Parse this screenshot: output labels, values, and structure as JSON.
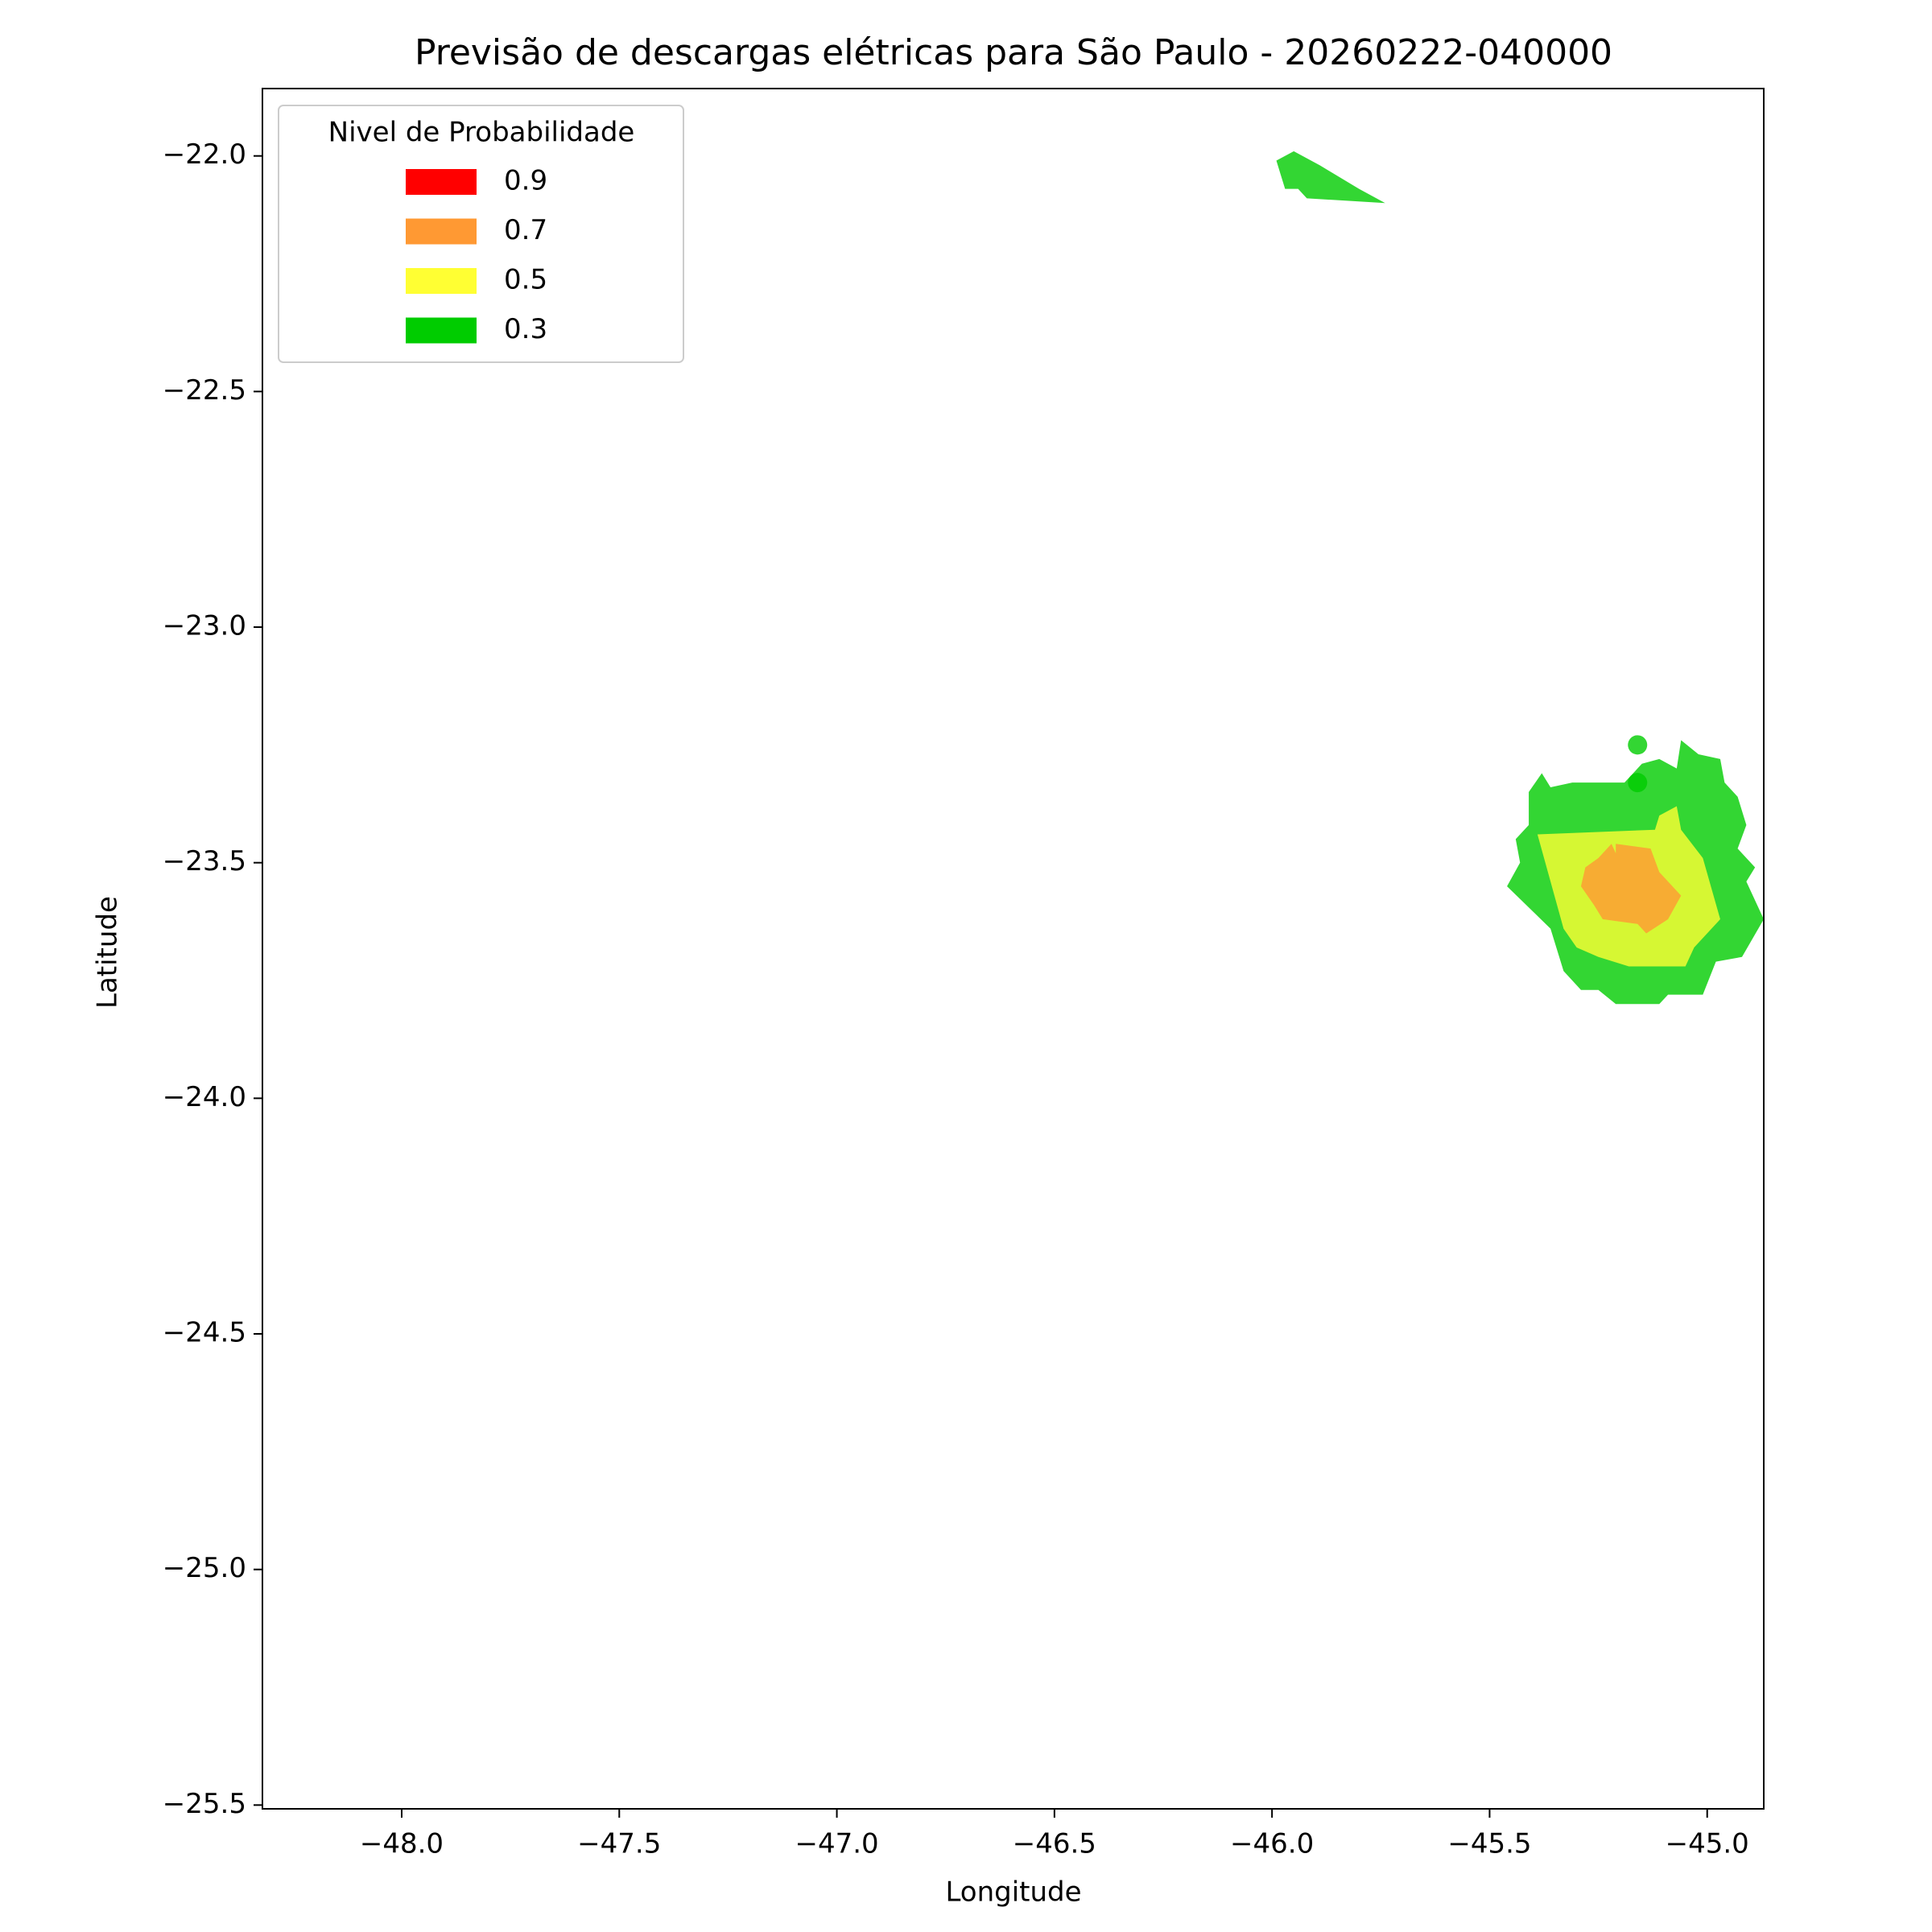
{
  "chart_data": {
    "type": "contour_map",
    "title": "Previsão de descargas elétricas para São Paulo - 20260222-040000",
    "x_label": "Longitude",
    "y_label": "Latitude",
    "xlim": [
      -48.32,
      -44.87
    ],
    "ylim": [
      -25.508,
      -21.857
    ],
    "xticks": [
      {
        "value": -48.0,
        "label": "−48.0"
      },
      {
        "value": -47.5,
        "label": "−47.5"
      },
      {
        "value": -47.0,
        "label": "−47.0"
      },
      {
        "value": -46.5,
        "label": "−46.5"
      },
      {
        "value": -46.0,
        "label": "−46.0"
      },
      {
        "value": -45.5,
        "label": "−45.5"
      },
      {
        "value": -45.0,
        "label": "−45.0"
      }
    ],
    "yticks": [
      {
        "value": -22.0,
        "label": "−22.0"
      },
      {
        "value": -22.5,
        "label": "−22.5"
      },
      {
        "value": -23.0,
        "label": "−23.0"
      },
      {
        "value": -23.5,
        "label": "−23.5"
      },
      {
        "value": -24.0,
        "label": "−24.0"
      },
      {
        "value": -24.5,
        "label": "−24.5"
      },
      {
        "value": -25.0,
        "label": "−25.0"
      },
      {
        "value": -25.5,
        "label": "−25.5"
      }
    ],
    "legend_title": "Nivel de Probabilidade",
    "legend_position": "upper left",
    "alpha": 0.8,
    "series": [
      {
        "name": "0.9",
        "color": "#ff0000",
        "polygons": []
      },
      {
        "name": "0.7",
        "color": "#ff9933",
        "polygons": [
          {
            "x": [
              -45.25,
              -45.22,
              -45.21,
              -45.21,
              -45.13,
              -45.11,
              -45.06,
              -45.09,
              -45.14,
              -45.16,
              -45.24,
              -45.26,
              -45.29,
              -45.28
            ],
            "y": [
              -23.49,
              -23.46,
              -23.48,
              -23.46,
              -23.47,
              -23.52,
              -23.57,
              -23.62,
              -23.65,
              -23.63,
              -23.62,
              -23.59,
              -23.55,
              -23.51
            ]
          }
        ]
      },
      {
        "name": "0.5",
        "color": "#ffff33",
        "polygons": [
          {
            "x": [
              -45.39,
              -45.12,
              -45.11,
              -45.07,
              -45.06,
              -45.01,
              -44.97,
              -45.03,
              -45.05,
              -45.18,
              -45.25,
              -45.3,
              -45.33
            ],
            "y": [
              -23.44,
              -23.43,
              -23.4,
              -23.38,
              -23.43,
              -23.49,
              -23.62,
              -23.68,
              -23.72,
              -23.72,
              -23.7,
              -23.68,
              -23.64
            ]
          }
        ]
      },
      {
        "name": "0.3",
        "color": "#00cc00",
        "polygons": [
          {
            "x": [
              -45.99,
              -45.95,
              -45.89,
              -45.8,
              -45.74,
              -45.92,
              -45.94,
              -45.97,
              -45.98
            ],
            "y": [
              -22.01,
              -21.99,
              -22.02,
              -22.07,
              -22.1,
              -22.09,
              -22.07,
              -22.07,
              -22.04
            ]
          },
          {
            "x": [
              -45.41,
              -45.38,
              -45.36,
              -45.31,
              -45.19,
              -45.15,
              -45.11,
              -45.07,
              -45.06,
              -45.02,
              -44.97,
              -44.96,
              -44.93,
              -44.91,
              -44.93,
              -44.89,
              -44.91,
              -44.87,
              -44.92,
              -44.98,
              -45.01,
              -45.09,
              -45.11,
              -45.21,
              -45.25,
              -45.29,
              -45.33,
              -45.36,
              -45.46,
              -45.43,
              -45.44,
              -45.41
            ],
            "y": [
              -23.35,
              -23.31,
              -23.34,
              -23.33,
              -23.33,
              -23.29,
              -23.28,
              -23.3,
              -23.24,
              -23.27,
              -23.28,
              -23.33,
              -23.36,
              -23.42,
              -23.47,
              -23.51,
              -23.54,
              -23.62,
              -23.7,
              -23.71,
              -23.78,
              -23.78,
              -23.8,
              -23.8,
              -23.77,
              -23.77,
              -23.73,
              -23.64,
              -23.55,
              -23.5,
              -23.45,
              -23.42
            ]
          }
        ]
      }
    ],
    "points": {
      "color": "#00cc00",
      "x": [
        -45.16,
        -45.16
      ],
      "y": [
        -23.25,
        -23.33
      ]
    }
  }
}
